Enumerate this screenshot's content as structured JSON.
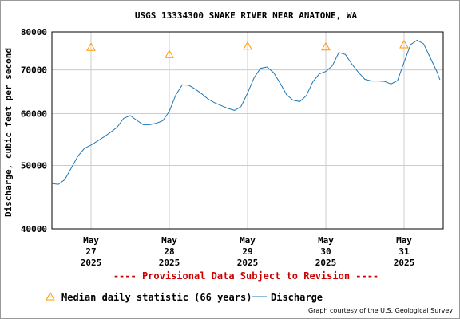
{
  "title": "USGS 13334300 SNAKE RIVER NEAR ANATONE, WA",
  "provisional_notice": "---- Provisional Data Subject to Revision ----",
  "credit": "Graph courtesy of the U.S. Geological Survey",
  "legend": {
    "median_label": "Median daily statistic (66 years)",
    "discharge_label": "Discharge"
  },
  "colors": {
    "discharge": "#1f77b4",
    "median": "#ff9900",
    "provisional": "#cc0000",
    "grid": "#cccccc"
  },
  "chart_data": {
    "type": "line",
    "title": "USGS 13334300 SNAKE RIVER NEAR ANATONE, WA",
    "ylabel": "Discharge, cubic feet per second",
    "xlabel": "",
    "y_scale": "log",
    "ylim": [
      40000,
      80000
    ],
    "y_ticks": [
      40000,
      50000,
      60000,
      70000,
      80000
    ],
    "y_tick_labels": [
      "40000",
      "50000",
      "60000",
      "70000",
      "80000"
    ],
    "xlim": [
      "2025-05-26 12:00",
      "2025-05-31 12:00"
    ],
    "x_ticks": [
      {
        "date": "2025-05-27 00:00",
        "lines": [
          "May",
          "27",
          "2025"
        ]
      },
      {
        "date": "2025-05-28 00:00",
        "lines": [
          "May",
          "28",
          "2025"
        ]
      },
      {
        "date": "2025-05-29 00:00",
        "lines": [
          "May",
          "29",
          "2025"
        ]
      },
      {
        "date": "2025-05-30 00:00",
        "lines": [
          "May",
          "30",
          "2025"
        ]
      },
      {
        "date": "2025-05-31 00:00",
        "lines": [
          "May",
          "31",
          "2025"
        ]
      }
    ],
    "grid": true,
    "series": [
      {
        "name": "Median daily statistic (66 years)",
        "kind": "marker",
        "points": [
          {
            "x": "2025-05-27 00:00",
            "y": 75800
          },
          {
            "x": "2025-05-28 00:00",
            "y": 73900
          },
          {
            "x": "2025-05-29 00:00",
            "y": 76100
          },
          {
            "x": "2025-05-30 00:00",
            "y": 75900
          },
          {
            "x": "2025-05-31 00:00",
            "y": 76500
          }
        ]
      },
      {
        "name": "Discharge",
        "kind": "line",
        "points": [
          {
            "x": "2025-05-26 12:00",
            "y": 46900
          },
          {
            "x": "2025-05-26 14:00",
            "y": 46800
          },
          {
            "x": "2025-05-26 16:00",
            "y": 47600
          },
          {
            "x": "2025-05-26 18:00",
            "y": 49600
          },
          {
            "x": "2025-05-26 20:00",
            "y": 51700
          },
          {
            "x": "2025-05-26 22:00",
            "y": 53100
          },
          {
            "x": "2025-05-27 00:00",
            "y": 53700
          },
          {
            "x": "2025-05-27 02:00",
            "y": 54500
          },
          {
            "x": "2025-05-27 04:00",
            "y": 55300
          },
          {
            "x": "2025-05-27 06:00",
            "y": 56200
          },
          {
            "x": "2025-05-27 08:00",
            "y": 57200
          },
          {
            "x": "2025-05-27 10:00",
            "y": 59000
          },
          {
            "x": "2025-05-27 12:00",
            "y": 59600
          },
          {
            "x": "2025-05-27 14:00",
            "y": 58600
          },
          {
            "x": "2025-05-27 16:00",
            "y": 57700
          },
          {
            "x": "2025-05-27 18:00",
            "y": 57700
          },
          {
            "x": "2025-05-27 20:00",
            "y": 58000
          },
          {
            "x": "2025-05-27 22:00",
            "y": 58500
          },
          {
            "x": "2025-05-28 00:00",
            "y": 60500
          },
          {
            "x": "2025-05-28 02:00",
            "y": 64100
          },
          {
            "x": "2025-05-28 04:00",
            "y": 66400
          },
          {
            "x": "2025-05-28 06:00",
            "y": 66300
          },
          {
            "x": "2025-05-28 08:00",
            "y": 65400
          },
          {
            "x": "2025-05-28 10:00",
            "y": 64300
          },
          {
            "x": "2025-05-28 12:00",
            "y": 63100
          },
          {
            "x": "2025-05-28 14:00",
            "y": 62300
          },
          {
            "x": "2025-05-28 16:00",
            "y": 61700
          },
          {
            "x": "2025-05-28 18:00",
            "y": 61100
          },
          {
            "x": "2025-05-28 20:00",
            "y": 60700
          },
          {
            "x": "2025-05-28 22:00",
            "y": 61500
          },
          {
            "x": "2025-05-29 00:00",
            "y": 64500
          },
          {
            "x": "2025-05-29 02:00",
            "y": 68100
          },
          {
            "x": "2025-05-29 04:00",
            "y": 70400
          },
          {
            "x": "2025-05-29 06:00",
            "y": 70700
          },
          {
            "x": "2025-05-29 08:00",
            "y": 69300
          },
          {
            "x": "2025-05-29 10:00",
            "y": 66800
          },
          {
            "x": "2025-05-29 12:00",
            "y": 64100
          },
          {
            "x": "2025-05-29 14:00",
            "y": 62900
          },
          {
            "x": "2025-05-29 16:00",
            "y": 62600
          },
          {
            "x": "2025-05-29 18:00",
            "y": 63900
          },
          {
            "x": "2025-05-29 20:00",
            "y": 67100
          },
          {
            "x": "2025-05-29 22:00",
            "y": 69000
          },
          {
            "x": "2025-05-30 00:00",
            "y": 69600
          },
          {
            "x": "2025-05-30 02:00",
            "y": 71000
          },
          {
            "x": "2025-05-30 04:00",
            "y": 74400
          },
          {
            "x": "2025-05-30 06:00",
            "y": 73900
          },
          {
            "x": "2025-05-30 08:00",
            "y": 71400
          },
          {
            "x": "2025-05-30 10:00",
            "y": 69400
          },
          {
            "x": "2025-05-30 12:00",
            "y": 67700
          },
          {
            "x": "2025-05-30 14:00",
            "y": 67300
          },
          {
            "x": "2025-05-30 16:00",
            "y": 67300
          },
          {
            "x": "2025-05-30 18:00",
            "y": 67200
          },
          {
            "x": "2025-05-30 20:00",
            "y": 66600
          },
          {
            "x": "2025-05-30 22:00",
            "y": 67400
          },
          {
            "x": "2025-05-31 00:00",
            "y": 71900
          },
          {
            "x": "2025-05-31 02:00",
            "y": 76500
          },
          {
            "x": "2025-05-31 04:00",
            "y": 77700
          },
          {
            "x": "2025-05-31 06:00",
            "y": 76700
          },
          {
            "x": "2025-05-31 08:00",
            "y": 73100
          },
          {
            "x": "2025-05-31 10:00",
            "y": 69700
          },
          {
            "x": "2025-05-31 11:00",
            "y": 67600
          }
        ]
      }
    ]
  }
}
